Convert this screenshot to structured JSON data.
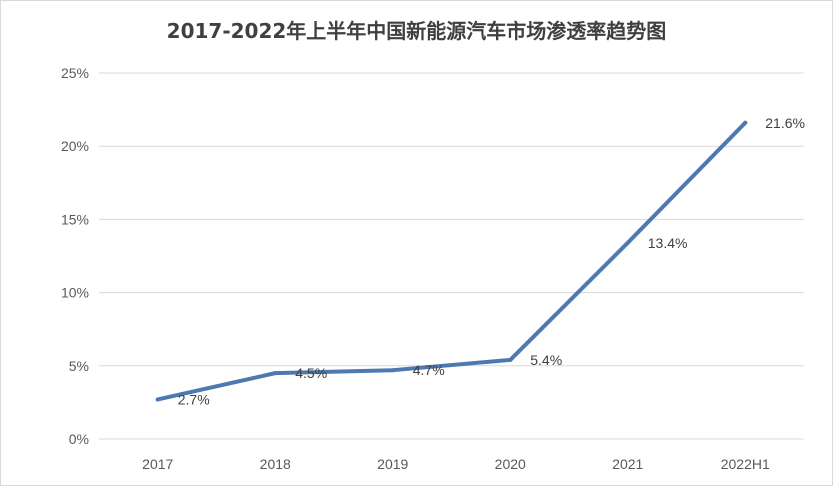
{
  "chart_data": {
    "type": "line",
    "title": "2017-2022年上半年中国新能源汽车市场渗透率趋势图",
    "categories": [
      "2017",
      "2018",
      "2019",
      "2020",
      "2021",
      "2022H1"
    ],
    "series": [
      {
        "values": [
          2.7,
          4.5,
          4.7,
          5.4,
          13.4,
          21.6
        ],
        "labels": [
          "2.7%",
          "4.5%",
          "4.7%",
          "5.4%",
          "13.4%",
          "21.6%"
        ],
        "color": "#4e79b0"
      }
    ],
    "yticks": [
      "0%",
      "5%",
      "10%",
      "15%",
      "20%",
      "25%"
    ],
    "ylim": [
      0,
      25
    ],
    "grid": true,
    "xlabel": "",
    "ylabel": ""
  }
}
